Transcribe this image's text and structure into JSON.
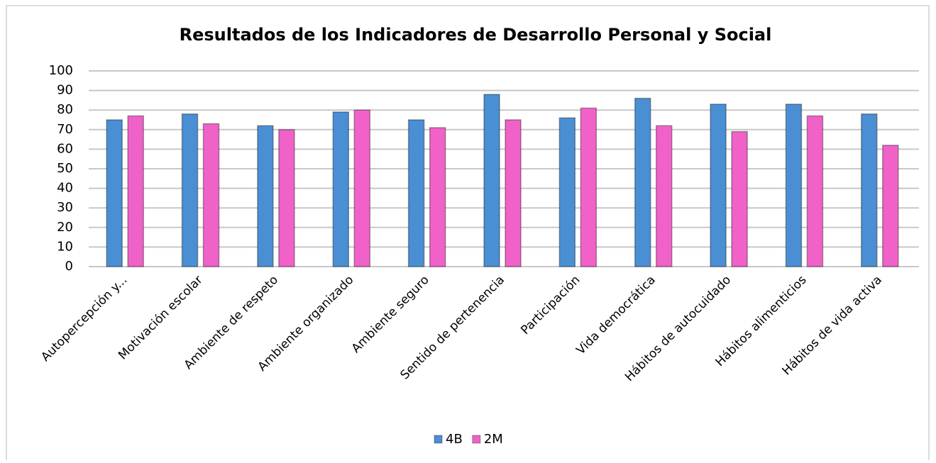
{
  "chart_data": {
    "type": "bar",
    "title": "Resultados de los Indicadores de Desarrollo Personal y Social",
    "categories": [
      "Autopercepción y...",
      "Motivación escolar",
      "Ambiente de respeto",
      "Ambiente organizado",
      "Ambiente seguro",
      "Sentido de pertenencia",
      "Participación",
      "Vida democrática",
      "Hábitos de autocuidado",
      "Hábitos alimenticios",
      "Hábitos de vida activa"
    ],
    "series": [
      {
        "name": "4B",
        "color": "#4a8fd4",
        "values": [
          75,
          78,
          72,
          79,
          75,
          88,
          76,
          86,
          83,
          83,
          78
        ]
      },
      {
        "name": "2M",
        "color": "#f062c8",
        "values": [
          77,
          73,
          70,
          80,
          71,
          75,
          81,
          72,
          69,
          77,
          62
        ]
      }
    ],
    "ylim": [
      0,
      100
    ],
    "yticks": [
      0,
      10,
      20,
      30,
      40,
      50,
      60,
      70,
      80,
      90,
      100
    ],
    "grid": true,
    "legend": "bottom"
  }
}
